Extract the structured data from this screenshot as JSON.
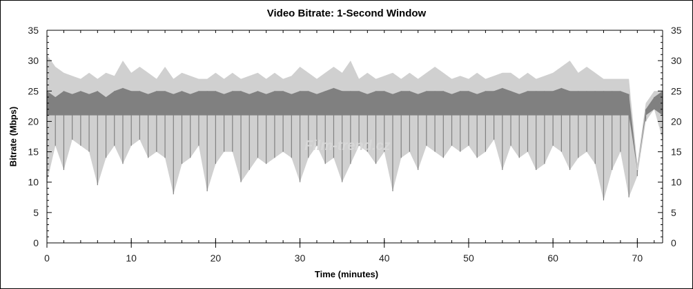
{
  "chart_data": {
    "type": "area",
    "title": "Video Bitrate: 1-Second Window",
    "xlabel": "Time (minutes)",
    "ylabel": "Bitrate (Mbps)",
    "xlim": [
      0,
      73
    ],
    "ylim": [
      0,
      35
    ],
    "xticks": [
      0,
      10,
      20,
      30,
      40,
      50,
      60,
      70
    ],
    "yticks": [
      0,
      5,
      10,
      15,
      20,
      25,
      30,
      35
    ],
    "grid": false,
    "colors": {
      "peak": "#d0d0d0",
      "typical": "#808080"
    },
    "x": [
      0,
      1,
      2,
      3,
      4,
      5,
      6,
      7,
      8,
      9,
      10,
      11,
      12,
      13,
      14,
      15,
      16,
      17,
      18,
      19,
      20,
      21,
      22,
      23,
      24,
      25,
      26,
      27,
      28,
      29,
      30,
      31,
      32,
      33,
      34,
      35,
      36,
      37,
      38,
      39,
      40,
      41,
      42,
      43,
      44,
      45,
      46,
      47,
      48,
      49,
      50,
      51,
      52,
      53,
      54,
      55,
      56,
      57,
      58,
      59,
      60,
      61,
      62,
      63,
      64,
      65,
      66,
      67,
      68,
      69,
      70,
      71,
      72,
      73
    ],
    "series": [
      {
        "key": "max",
        "values": [
          31,
          29,
          28,
          27.5,
          27,
          28,
          27,
          28,
          27.5,
          30,
          28,
          29,
          28,
          27,
          29,
          27,
          28,
          27.5,
          27,
          27,
          28,
          27,
          28,
          27,
          27.5,
          28,
          27,
          28,
          27,
          27.5,
          29,
          28,
          27,
          28,
          29,
          28,
          30,
          27,
          28,
          27,
          27.5,
          28,
          27,
          28,
          27,
          28,
          29,
          28,
          27,
          27.5,
          27,
          28,
          27,
          27.5,
          28,
          28,
          27,
          28,
          27,
          27.5,
          28,
          29,
          30,
          28,
          29,
          28,
          27,
          27,
          27,
          27,
          13,
          23,
          25,
          25
        ]
      },
      {
        "key": "typical",
        "values": [
          25,
          24,
          25,
          24.5,
          25,
          24.5,
          25,
          24,
          25,
          25.5,
          25,
          25,
          24.5,
          25,
          25,
          24.5,
          25,
          24.5,
          25,
          25,
          25,
          24.5,
          25,
          25,
          24.5,
          25,
          24.5,
          25,
          25,
          24.5,
          25,
          25,
          24.5,
          25,
          25.5,
          25,
          25,
          25,
          24.5,
          25,
          25,
          24.5,
          25,
          25,
          24.5,
          25,
          25,
          25,
          24.5,
          25,
          25,
          24.5,
          25,
          25,
          25.5,
          25,
          24.5,
          25,
          25,
          25,
          25,
          25.5,
          25,
          25,
          25,
          25,
          25,
          25,
          25,
          24.5,
          12,
          22,
          24,
          25
        ]
      },
      {
        "key": "min",
        "values": [
          10,
          16,
          12,
          17,
          16,
          15,
          9.5,
          14,
          16,
          13,
          16,
          17,
          14,
          15,
          14,
          8,
          13,
          14,
          16,
          8.5,
          13,
          15,
          15,
          10,
          12,
          14,
          13,
          14,
          15,
          14,
          10,
          14,
          16,
          13,
          14,
          10,
          13,
          16,
          15,
          13,
          15,
          8.5,
          14,
          15,
          12,
          16,
          15,
          14,
          16,
          15,
          16,
          14,
          15,
          17,
          12,
          16,
          14,
          15,
          12,
          13,
          16,
          15,
          12,
          14,
          15,
          13,
          7,
          12,
          15,
          7.5,
          11,
          20,
          22,
          17
        ]
      }
    ]
  },
  "watermark": "Film-trend.cz"
}
